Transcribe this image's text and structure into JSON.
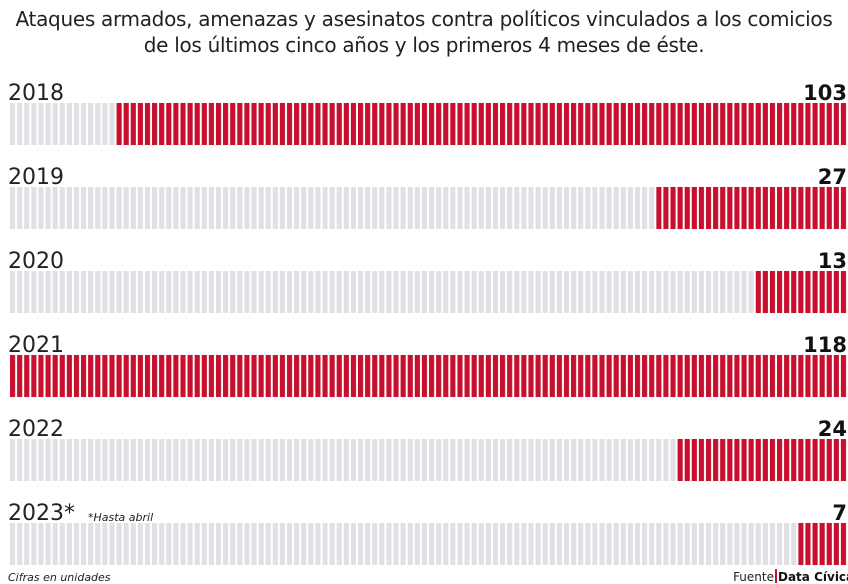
{
  "chart_data": {
    "type": "unit-bar",
    "title": "Ataques armados, amenazas y asesinatos contra políticos vinculados a los comicios de los últimos cinco años y los primeros 4 meses de éste.",
    "categories": [
      "2018",
      "2019",
      "2020",
      "2021",
      "2022",
      "2023*"
    ],
    "values": [
      103,
      27,
      13,
      118,
      24,
      7
    ],
    "color": "#c8102e",
    "background_color": "#dfe1e4",
    "note": "*Hasta abril",
    "footnote": "Cifras en unidades",
    "source_label": "Fuente",
    "source": "Data Cívica"
  }
}
